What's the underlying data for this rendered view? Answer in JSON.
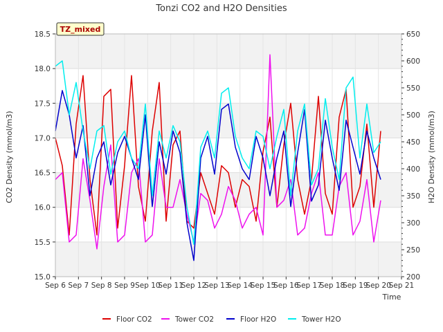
{
  "chart_data": {
    "type": "line",
    "title": "Tonzi CO2 and H2O Densities",
    "badge": "TZ_mixed",
    "xlabel": "Time",
    "ylabel_left": "CO2 Density (mmol/m3)",
    "ylabel_right": "H2O Density (mmol/m3)",
    "x_ticks": [
      "Sep 6",
      "Sep 7",
      "Sep 8",
      "Sep 9",
      "Sep 10",
      "Sep 11",
      "Sep 12",
      "Sep 13",
      "Sep 14",
      "Sep 15",
      "Sep 16",
      "Sep 17",
      "Sep 18",
      "Sep 19",
      "Sep 20",
      "Sep 21"
    ],
    "xlim": [
      6,
      21
    ],
    "ylim_left": [
      15.0,
      18.5
    ],
    "yticks_left": [
      "15.0",
      "15.5",
      "16.0",
      "16.5",
      "17.0",
      "17.5",
      "18.0",
      "18.5"
    ],
    "ylim_right": [
      200,
      650
    ],
    "yticks_right": [
      "200",
      "250",
      "300",
      "350",
      "400",
      "450",
      "500",
      "550",
      "600",
      "650"
    ],
    "grid": true,
    "legend_position": "bottom",
    "series": [
      {
        "name": "Floor CO2",
        "axis": "left",
        "color": "#dd0000",
        "x": [
          6.0,
          6.3,
          6.6,
          6.9,
          7.2,
          7.5,
          7.8,
          8.1,
          8.4,
          8.7,
          9.0,
          9.3,
          9.6,
          9.9,
          10.2,
          10.5,
          10.8,
          11.1,
          11.4,
          11.7,
          12.0,
          12.3,
          12.6,
          12.9,
          13.2,
          13.5,
          13.8,
          14.1,
          14.4,
          14.7,
          15.0,
          15.3,
          15.6,
          15.9,
          16.2,
          16.5,
          16.8,
          17.1,
          17.4,
          17.7,
          18.0,
          18.3,
          18.6,
          18.9,
          19.2,
          19.5,
          19.8,
          20.1
        ],
        "y": [
          17.0,
          16.6,
          15.6,
          17.2,
          17.9,
          16.4,
          15.6,
          17.6,
          17.7,
          15.7,
          16.6,
          17.9,
          16.3,
          15.8,
          17.1,
          17.8,
          15.8,
          16.9,
          17.1,
          15.8,
          15.7,
          16.5,
          16.2,
          15.9,
          16.6,
          16.5,
          16.0,
          16.4,
          16.3,
          15.8,
          16.8,
          17.3,
          16.0,
          16.9,
          17.5,
          16.4,
          15.9,
          16.4,
          17.6,
          16.2,
          15.9,
          17.3,
          17.7,
          16.0,
          16.3,
          17.2,
          16.0,
          17.1
        ]
      },
      {
        "name": "Tower CO2",
        "axis": "left",
        "color": "#ee11ee",
        "x": [
          6.0,
          6.3,
          6.6,
          6.9,
          7.2,
          7.5,
          7.8,
          8.1,
          8.4,
          8.7,
          9.0,
          9.3,
          9.6,
          9.9,
          10.2,
          10.5,
          10.8,
          11.1,
          11.4,
          11.7,
          12.0,
          12.3,
          12.6,
          12.9,
          13.2,
          13.5,
          13.8,
          14.1,
          14.4,
          14.7,
          15.0,
          15.3,
          15.6,
          15.9,
          16.2,
          16.5,
          16.8,
          17.1,
          17.4,
          17.7,
          18.0,
          18.3,
          18.6,
          18.9,
          19.2,
          19.5,
          19.8,
          20.1
        ],
        "y": [
          16.4,
          16.5,
          15.5,
          15.6,
          16.7,
          16.1,
          15.4,
          16.3,
          16.9,
          15.5,
          15.6,
          16.5,
          16.7,
          15.5,
          15.6,
          16.7,
          16.0,
          16.0,
          16.4,
          15.9,
          15.5,
          16.2,
          16.1,
          15.7,
          15.9,
          16.3,
          16.1,
          15.7,
          15.9,
          16.0,
          15.6,
          18.2,
          16.0,
          16.1,
          16.4,
          15.6,
          15.7,
          16.2,
          16.5,
          15.6,
          15.6,
          16.3,
          16.5,
          15.6,
          15.8,
          16.4,
          15.5,
          16.1
        ]
      },
      {
        "name": "Floor H2O",
        "axis": "right",
        "color": "#0000cc",
        "x": [
          6.0,
          6.3,
          6.6,
          6.9,
          7.2,
          7.5,
          7.8,
          8.1,
          8.4,
          8.7,
          9.0,
          9.3,
          9.6,
          9.9,
          10.2,
          10.5,
          10.8,
          11.1,
          11.4,
          11.7,
          12.0,
          12.3,
          12.6,
          12.9,
          13.2,
          13.5,
          13.8,
          14.1,
          14.4,
          14.7,
          15.0,
          15.3,
          15.6,
          15.9,
          16.2,
          16.5,
          16.8,
          17.1,
          17.4,
          17.7,
          18.0,
          18.3,
          18.6,
          18.9,
          19.2,
          19.5,
          19.8,
          20.1
        ],
        "y": [
          470,
          545,
          500,
          420,
          480,
          350,
          420,
          450,
          370,
          430,
          460,
          420,
          380,
          500,
          330,
          450,
          390,
          470,
          430,
          300,
          230,
          420,
          460,
          390,
          510,
          520,
          440,
          400,
          380,
          460,
          420,
          350,
          420,
          470,
          330,
          430,
          510,
          340,
          370,
          490,
          420,
          360,
          490,
          440,
          390,
          470,
          420,
          380
        ]
      },
      {
        "name": "Tower H2O",
        "axis": "right",
        "color": "#00eeee",
        "x": [
          6.0,
          6.3,
          6.6,
          6.9,
          7.2,
          7.5,
          7.8,
          8.1,
          8.4,
          8.7,
          9.0,
          9.3,
          9.6,
          9.9,
          10.2,
          10.5,
          10.8,
          11.1,
          11.4,
          11.7,
          12.0,
          12.3,
          12.6,
          12.9,
          13.2,
          13.5,
          13.8,
          14.1,
          14.4,
          14.7,
          15.0,
          15.3,
          15.6,
          15.9,
          16.2,
          16.5,
          16.8,
          17.1,
          17.4,
          17.7,
          18.0,
          18.3,
          18.6,
          18.9,
          19.2,
          19.5,
          19.8,
          20.1
        ],
        "y": [
          590,
          600,
          500,
          560,
          470,
          400,
          470,
          480,
          390,
          450,
          470,
          420,
          400,
          520,
          350,
          470,
          420,
          480,
          450,
          330,
          260,
          440,
          470,
          420,
          540,
          550,
          460,
          420,
          400,
          470,
          460,
          400,
          460,
          510,
          350,
          470,
          520,
          370,
          400,
          530,
          440,
          380,
          550,
          570,
          420,
          520,
          430,
          450
        ]
      }
    ]
  }
}
